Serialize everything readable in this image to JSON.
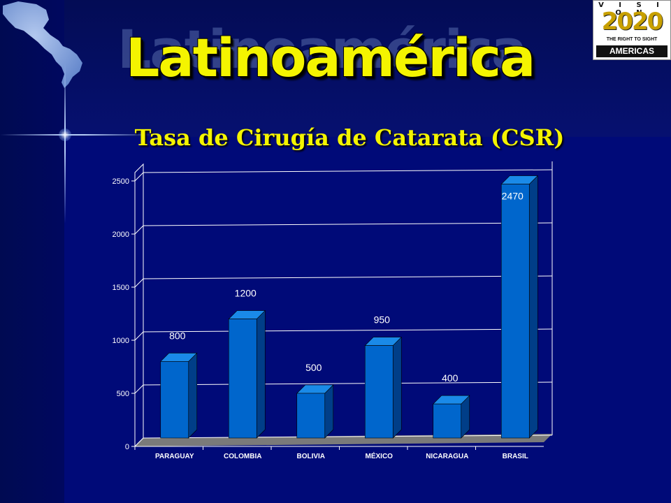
{
  "slide": {
    "title": "Latinoamérica",
    "logo": {
      "word": "V I S I O N",
      "number": "2020",
      "tagline": "THE RIGHT TO SIGHT",
      "region": "AMERICAS"
    }
  },
  "colors": {
    "background": "#000a78",
    "title": "#f4f400",
    "bar_front": "#0066cc",
    "bar_side": "#003e88",
    "bar_top": "#1a8ae8",
    "floor": "#7a7a7a",
    "gridline": "#ffffff"
  },
  "chart_data": {
    "type": "bar",
    "title": "Tasa de Cirugía de Catarata (CSR)",
    "categories": [
      "PARAGUAY",
      "COLOMBIA",
      "BOLIVIA",
      "MÉXICO",
      "NICARAGUA",
      "BRASIL"
    ],
    "values": [
      800,
      1200,
      500,
      950,
      400,
      2470
    ],
    "data_labels": [
      "800",
      "1200",
      "500",
      "950",
      "400",
      "2470"
    ],
    "y_ticks": [
      "0",
      "500",
      "1000",
      "1500",
      "2000",
      "2500"
    ],
    "ylim": [
      0,
      2500
    ],
    "xlabel": "",
    "ylabel": "",
    "grid": true,
    "legend": "none",
    "style": "3d-bar"
  }
}
